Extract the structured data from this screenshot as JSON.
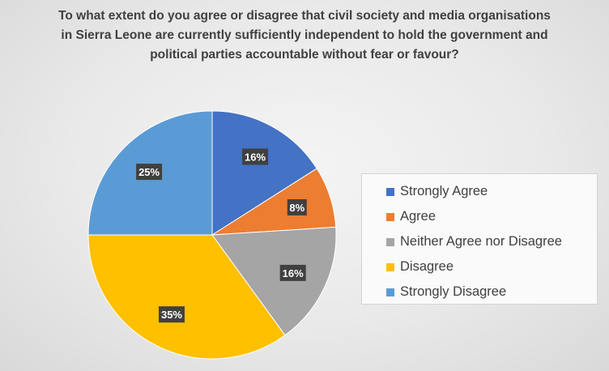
{
  "title_lines": [
    "To what extent do you agree or disagree that civil society and media organisations",
    "in Sierra Leone are currently sufficiently independent to hold the government and",
    "political parties accountable without fear or favour?"
  ],
  "chart_data": {
    "type": "pie",
    "title": "To what extent do you agree or disagree that civil society and media organisations in Sierra Leone are currently sufficiently independent to hold the government and political parties accountable without fear or favour?",
    "legend_position": "right",
    "start_angle": "12 o'clock, clockwise",
    "slices": [
      {
        "label": "Strongly Agree",
        "value": 16,
        "display": "16%",
        "color": "#4472C4"
      },
      {
        "label": "Agree",
        "value": 8,
        "display": "8%",
        "color": "#ED7D31"
      },
      {
        "label": "Neither Agree nor Disagree",
        "value": 16,
        "display": "16%",
        "color": "#A5A5A5"
      },
      {
        "label": "Disagree",
        "value": 35,
        "display": "35%",
        "color": "#FFC000"
      },
      {
        "label": "Strongly Disagree",
        "value": 25,
        "display": "25%",
        "color": "#5B9BD5"
      }
    ]
  }
}
